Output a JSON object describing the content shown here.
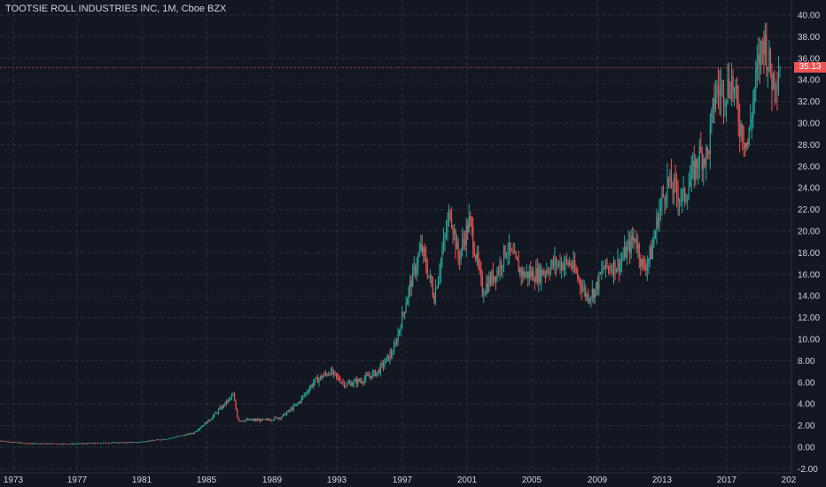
{
  "header": {
    "symbol_title": "TOOTSIE ROLL INDUSTRIES INC, 1M, Cboe BZX"
  },
  "colors": {
    "background": "#131722",
    "grid": "#2a2e39",
    "text": "#d1d4dc",
    "up": "#26a69a",
    "down": "#ef5350",
    "last_price": "#ef5350"
  },
  "last_price": {
    "label": "35.13",
    "value": 35.13
  },
  "chart_data": {
    "type": "candlestick",
    "title": "TOOTSIE ROLL INDUSTRIES INC, 1M, Cboe BZX",
    "interval": "1M",
    "grid": true,
    "y_axis": {
      "position": "right",
      "range": [
        -2,
        40
      ],
      "ticks": [
        "-2.00",
        "0.00",
        "2.00",
        "4.00",
        "6.00",
        "8.00",
        "10.00",
        "12.00",
        "14.00",
        "16.00",
        "18.00",
        "20.00",
        "22.00",
        "24.00",
        "26.00",
        "28.00",
        "30.00",
        "32.00",
        "34.00",
        "36.00",
        "38.00",
        "40.00"
      ]
    },
    "x_axis": {
      "range": [
        1972.5,
        2021.0
      ],
      "ticks": [
        "1973",
        "1977",
        "1981",
        "1985",
        "1989",
        "1993",
        "1997",
        "2001",
        "2005",
        "2009",
        "2013",
        "2017",
        "202"
      ]
    },
    "series_points": [
      {
        "t": 1972.5,
        "p": 0.6
      },
      {
        "t": 1974,
        "p": 0.35
      },
      {
        "t": 1977,
        "p": 0.3
      },
      {
        "t": 1979,
        "p": 0.4
      },
      {
        "t": 1981,
        "p": 0.45
      },
      {
        "t": 1983,
        "p": 0.8
      },
      {
        "t": 1984.5,
        "p": 1.3
      },
      {
        "t": 1985.5,
        "p": 2.5
      },
      {
        "t": 1987,
        "p": 4.8
      },
      {
        "t": 1987.3,
        "p": 2.5
      },
      {
        "t": 1989,
        "p": 2.5
      },
      {
        "t": 1990,
        "p": 2.8
      },
      {
        "t": 1991,
        "p": 4.0
      },
      {
        "t": 1992,
        "p": 6.0
      },
      {
        "t": 1993,
        "p": 7.0
      },
      {
        "t": 1994,
        "p": 5.8
      },
      {
        "t": 1995,
        "p": 6.2
      },
      {
        "t": 1996,
        "p": 7.0
      },
      {
        "t": 1997,
        "p": 9.0
      },
      {
        "t": 1998,
        "p": 15.0
      },
      {
        "t": 1998.7,
        "p": 18.5
      },
      {
        "t": 1999.5,
        "p": 14.0
      },
      {
        "t": 2000,
        "p": 18.0
      },
      {
        "t": 2000.5,
        "p": 22.0
      },
      {
        "t": 2001,
        "p": 17.5
      },
      {
        "t": 2001.7,
        "p": 21.0
      },
      {
        "t": 2002.5,
        "p": 14.5
      },
      {
        "t": 2003.5,
        "p": 16.5
      },
      {
        "t": 2004,
        "p": 18.5
      },
      {
        "t": 2005,
        "p": 16.0
      },
      {
        "t": 2006,
        "p": 16.0
      },
      {
        "t": 2007,
        "p": 17.0
      },
      {
        "t": 2008,
        "p": 17.0
      },
      {
        "t": 2009,
        "p": 14.0
      },
      {
        "t": 2009.5,
        "p": 14.5
      },
      {
        "t": 2010,
        "p": 16.5
      },
      {
        "t": 2011,
        "p": 17.0
      },
      {
        "t": 2012,
        "p": 19.5
      },
      {
        "t": 2012.5,
        "p": 16.5
      },
      {
        "t": 2013,
        "p": 18.0
      },
      {
        "t": 2013.5,
        "p": 22.0
      },
      {
        "t": 2014,
        "p": 24.5
      },
      {
        "t": 2015,
        "p": 23.0
      },
      {
        "t": 2016,
        "p": 27.0
      },
      {
        "t": 2016.5,
        "p": 27.0
      },
      {
        "t": 2017,
        "p": 33.0
      },
      {
        "t": 2017.5,
        "p": 33.0
      },
      {
        "t": 2018,
        "p": 34.0
      },
      {
        "t": 2018.5,
        "p": 30.0
      },
      {
        "t": 2019,
        "p": 28.0
      },
      {
        "t": 2019.5,
        "p": 34.0
      },
      {
        "t": 2020,
        "p": 38.0
      },
      {
        "t": 2020.5,
        "p": 34.0
      },
      {
        "t": 2021.0,
        "p": 35.13
      }
    ]
  }
}
